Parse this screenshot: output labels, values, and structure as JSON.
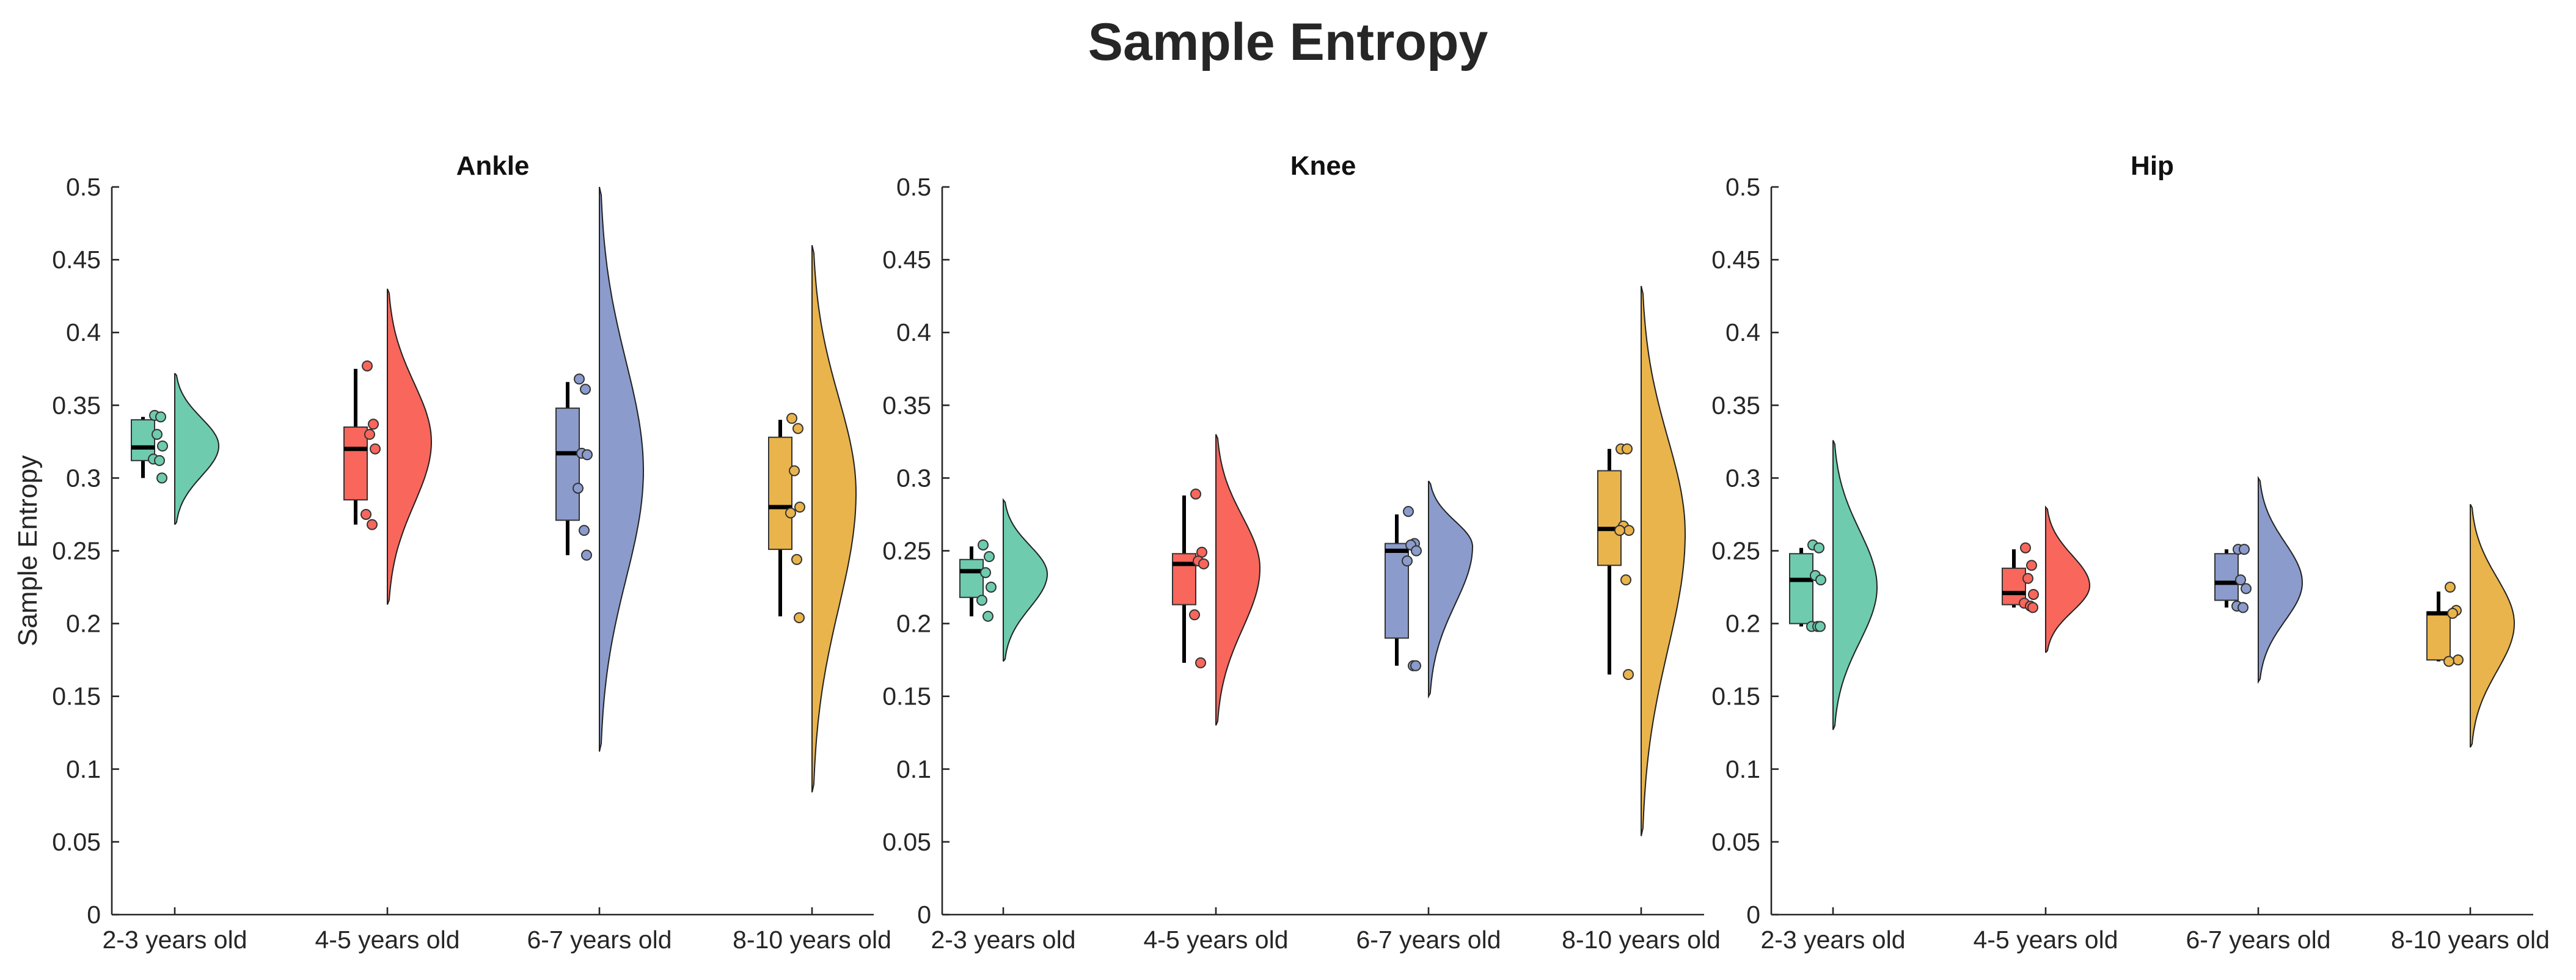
{
  "title": "Sample Entropy",
  "chart_data": {
    "type": "raincloud",
    "title": "Sample Entropy",
    "ylabel": "Sample Entropy",
    "ylim": [
      0,
      0.5
    ],
    "yticks": [
      0,
      0.05,
      0.1,
      0.15,
      0.2,
      0.25,
      0.3,
      0.35,
      0.4,
      0.45,
      0.5
    ],
    "ytick_labels": [
      "0",
      "0.05",
      "0.1",
      "0.15",
      "0.2",
      "0.25",
      "0.3",
      "0.35",
      "0.4",
      "0.45",
      "0.5"
    ],
    "categories": [
      "2-3 years old",
      "4-5 years old",
      "6-7 years old",
      "8-10 years old"
    ],
    "colors": [
      "#6ECBAE",
      "#F8665C",
      "#8B9BCC",
      "#E9B44C"
    ],
    "panels": [
      {
        "title": "Ankle",
        "groups": [
          {
            "category": "2-3 years old",
            "points": [
              0.343,
              0.342,
              0.33,
              0.322,
              0.313,
              0.312,
              0.3
            ],
            "box": {
              "min": 0.3,
              "q1": 0.312,
              "median": 0.321,
              "q3": 0.34,
              "max": 0.342
            },
            "density": {
              "min": 0.268,
              "max": 0.372,
              "mode": 0.322
            }
          },
          {
            "category": "4-5 years old",
            "points": [
              0.377,
              0.337,
              0.33,
              0.32,
              0.275,
              0.268
            ],
            "box": {
              "min": 0.268,
              "q1": 0.285,
              "median": 0.32,
              "q3": 0.335,
              "max": 0.375
            },
            "density": {
              "min": 0.213,
              "max": 0.43,
              "mode": 0.325
            }
          },
          {
            "category": "6-7 years old",
            "points": [
              0.368,
              0.361,
              0.317,
              0.316,
              0.293,
              0.264,
              0.247
            ],
            "box": {
              "min": 0.247,
              "q1": 0.271,
              "median": 0.317,
              "q3": 0.348,
              "max": 0.366
            },
            "density": {
              "min": 0.112,
              "max": 0.5,
              "mode": 0.305
            }
          },
          {
            "category": "8-10 years old",
            "points": [
              0.341,
              0.334,
              0.305,
              0.28,
              0.276,
              0.244,
              0.204
            ],
            "box": {
              "min": 0.205,
              "q1": 0.251,
              "median": 0.28,
              "q3": 0.328,
              "max": 0.34
            },
            "density": {
              "min": 0.084,
              "max": 0.46,
              "mode": 0.29
            }
          }
        ]
      },
      {
        "title": "Knee",
        "groups": [
          {
            "category": "2-3 years old",
            "points": [
              0.254,
              0.246,
              0.235,
              0.225,
              0.216,
              0.205
            ],
            "box": {
              "min": 0.205,
              "q1": 0.218,
              "median": 0.236,
              "q3": 0.244,
              "max": 0.253
            },
            "density": {
              "min": 0.174,
              "max": 0.285,
              "mode": 0.234
            }
          },
          {
            "category": "4-5 years old",
            "points": [
              0.289,
              0.249,
              0.243,
              0.241,
              0.206,
              0.173
            ],
            "box": {
              "min": 0.173,
              "q1": 0.213,
              "median": 0.241,
              "q3": 0.248,
              "max": 0.288
            },
            "density": {
              "min": 0.13,
              "max": 0.33,
              "mode": 0.238
            }
          },
          {
            "category": "6-7 years old",
            "points": [
              0.277,
              0.255,
              0.254,
              0.25,
              0.243,
              0.171,
              0.171
            ],
            "box": {
              "min": 0.171,
              "q1": 0.19,
              "median": 0.25,
              "q3": 0.255,
              "max": 0.275
            },
            "density": {
              "min": 0.15,
              "max": 0.298,
              "mode": 0.253
            }
          },
          {
            "category": "8-10 years old",
            "points": [
              0.32,
              0.32,
              0.267,
              0.264,
              0.264,
              0.23,
              0.165
            ],
            "box": {
              "min": 0.165,
              "q1": 0.24,
              "median": 0.265,
              "q3": 0.305,
              "max": 0.32
            },
            "density": {
              "min": 0.054,
              "max": 0.432,
              "mode": 0.262
            }
          }
        ]
      },
      {
        "title": "Hip",
        "groups": [
          {
            "category": "2-3 years old",
            "points": [
              0.254,
              0.252,
              0.233,
              0.23,
              0.198,
              0.198,
              0.198
            ],
            "box": {
              "min": 0.198,
              "q1": 0.2,
              "median": 0.23,
              "q3": 0.248,
              "max": 0.252
            },
            "density": {
              "min": 0.127,
              "max": 0.326,
              "mode": 0.225
            }
          },
          {
            "category": "4-5 years old",
            "points": [
              0.252,
              0.24,
              0.231,
              0.22,
              0.214,
              0.212,
              0.211
            ],
            "box": {
              "min": 0.211,
              "q1": 0.213,
              "median": 0.221,
              "q3": 0.238,
              "max": 0.251
            },
            "density": {
              "min": 0.18,
              "max": 0.28,
              "mode": 0.226
            }
          },
          {
            "category": "6-7 years old",
            "points": [
              0.251,
              0.251,
              0.23,
              0.224,
              0.212,
              0.211
            ],
            "box": {
              "min": 0.211,
              "q1": 0.216,
              "median": 0.228,
              "q3": 0.248,
              "max": 0.251
            },
            "density": {
              "min": 0.16,
              "max": 0.3,
              "mode": 0.228
            }
          },
          {
            "category": "8-10 years old",
            "points": [
              0.225,
              0.209,
              0.207,
              0.175,
              0.174
            ],
            "box": {
              "min": 0.174,
              "q1": 0.175,
              "median": 0.207,
              "q3": 0.208,
              "max": 0.222
            },
            "density": {
              "min": 0.115,
              "max": 0.282,
              "mode": 0.2
            }
          }
        ]
      }
    ]
  }
}
